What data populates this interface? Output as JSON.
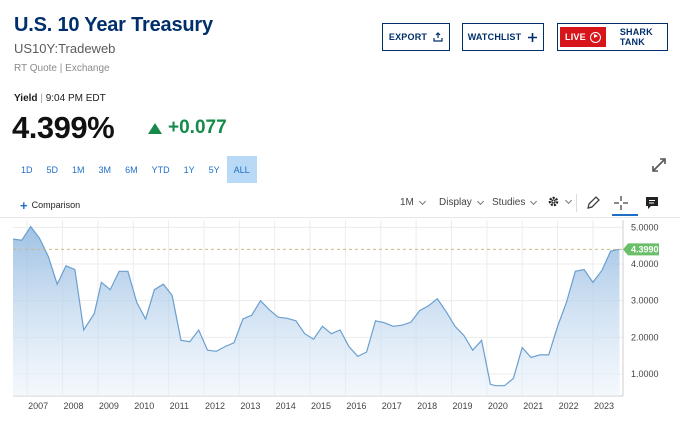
{
  "header": {
    "title": "U.S. 10 Year Treasury",
    "symbol": "US10Y:Tradeweb",
    "source": "RT Quote | Exchange"
  },
  "actions": {
    "export_label": "EXPORT",
    "watchlist_label": "WATCHLIST",
    "live_label": "LIVE",
    "shark_label": "SHARK TANK"
  },
  "quote": {
    "yield_label": "Yield",
    "separator": "|",
    "time": "9:04 PM EDT",
    "price": "4.399%",
    "change": "+0.077"
  },
  "ranges": [
    "1D",
    "5D",
    "1M",
    "3M",
    "6M",
    "YTD",
    "1Y",
    "5Y",
    "ALL"
  ],
  "active_range": "ALL",
  "toolbar": {
    "comparison_label": "Comparison",
    "interval": "1M",
    "display": "Display",
    "studies": "Studies"
  },
  "colors": {
    "brand": "#002f6c",
    "up": "#168a4a",
    "accent": "#1f6fc5",
    "live": "#d7141a",
    "line": "#6a9fd0",
    "last_badge": "#6abf69"
  },
  "icons": {
    "export": "export-icon",
    "watchlist": "plus-icon",
    "live": "play-icon",
    "expand": "expand-icon",
    "settings": "gear-icon",
    "draw": "pencil-icon",
    "crosshair": "crosshair-icon",
    "comment": "comment-icon"
  },
  "chart_data": {
    "type": "area",
    "x_axis_ticks": [
      "2007",
      "2008",
      "2009",
      "2010",
      "2011",
      "2012",
      "2013",
      "2014",
      "2015",
      "2016",
      "2017",
      "2018",
      "2019",
      "2020",
      "2021",
      "2022",
      "2023"
    ],
    "y_axis_ticks": [
      "1.0000",
      "2.0000",
      "3.0000",
      "4.0000",
      "5.0000"
    ],
    "ylim": [
      0.4,
      5.2
    ],
    "xlim": [
      2006.6,
      2023.85
    ],
    "last_value_label": "4.3990",
    "last_value": 4.399,
    "x": [
      2006.6,
      2006.85,
      2007.1,
      2007.35,
      2007.6,
      2007.85,
      2008.1,
      2008.35,
      2008.6,
      2008.9,
      2009.1,
      2009.35,
      2009.6,
      2009.85,
      2010.1,
      2010.35,
      2010.6,
      2010.85,
      2011.1,
      2011.35,
      2011.6,
      2011.85,
      2012.1,
      2012.35,
      2012.6,
      2012.85,
      2013.1,
      2013.35,
      2013.6,
      2013.85,
      2014.1,
      2014.35,
      2014.6,
      2014.85,
      2015.1,
      2015.35,
      2015.6,
      2015.85,
      2016.1,
      2016.35,
      2016.6,
      2016.85,
      2017.1,
      2017.35,
      2017.6,
      2017.85,
      2018.1,
      2018.35,
      2018.6,
      2018.85,
      2019.1,
      2019.35,
      2019.6,
      2019.85,
      2020.1,
      2020.25,
      2020.5,
      2020.75,
      2021.0,
      2021.25,
      2021.5,
      2021.75,
      2022.0,
      2022.25,
      2022.5,
      2022.75,
      2023.0,
      2023.25,
      2023.5,
      2023.75
    ],
    "y": [
      4.68,
      4.65,
      5.02,
      4.7,
      4.2,
      3.45,
      3.95,
      3.85,
      2.2,
      2.65,
      3.5,
      3.3,
      3.8,
      3.8,
      2.95,
      2.5,
      3.3,
      3.45,
      3.15,
      1.92,
      1.88,
      2.2,
      1.65,
      1.62,
      1.75,
      1.85,
      2.5,
      2.6,
      3.0,
      2.75,
      2.55,
      2.52,
      2.45,
      2.1,
      1.95,
      2.3,
      2.1,
      2.2,
      1.75,
      1.48,
      1.6,
      2.45,
      2.4,
      2.3,
      2.33,
      2.41,
      2.73,
      2.86,
      3.05,
      2.7,
      2.3,
      2.05,
      1.65,
      1.92,
      0.72,
      0.68,
      0.68,
      0.88,
      1.72,
      1.45,
      1.52,
      1.52,
      2.3,
      2.95,
      3.8,
      3.85,
      3.5,
      3.82,
      4.35,
      4.4
    ]
  }
}
